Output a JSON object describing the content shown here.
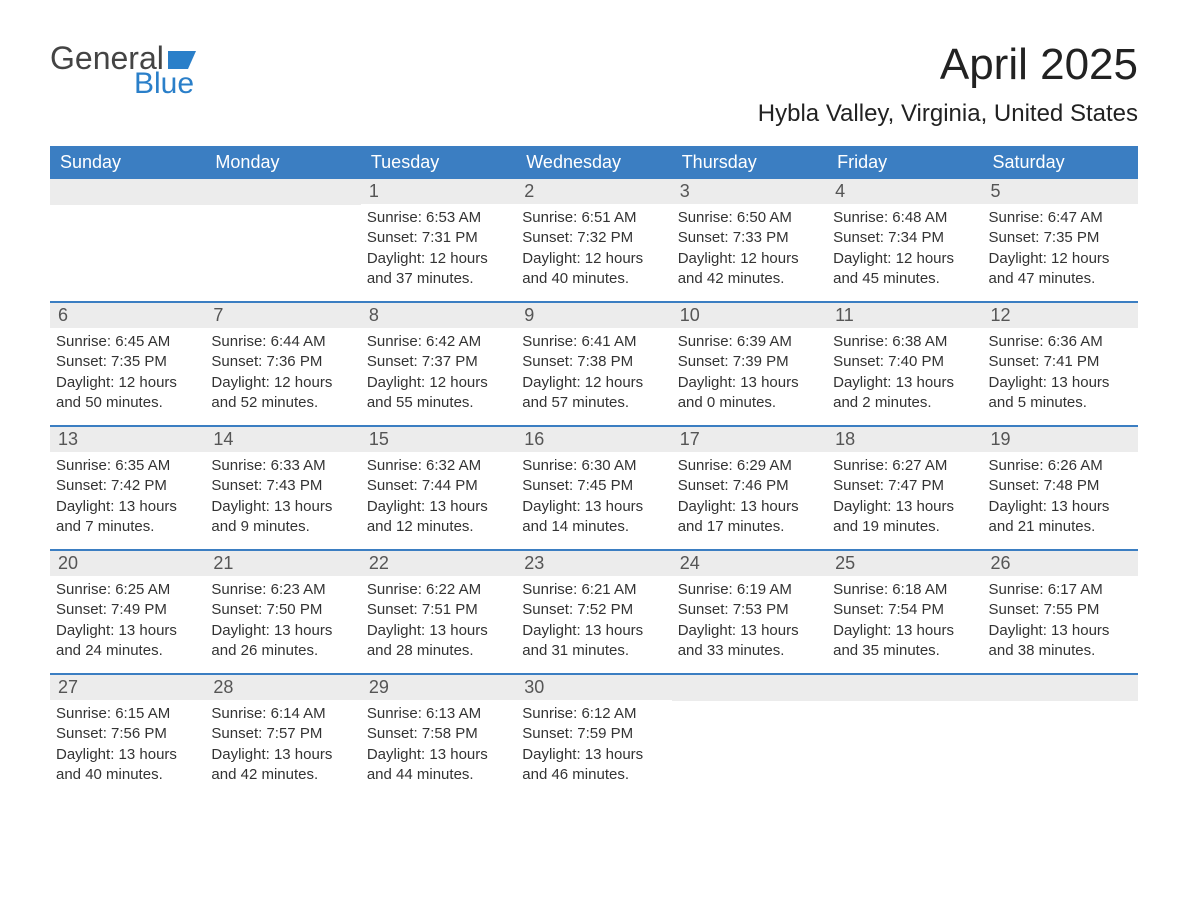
{
  "logo": {
    "text1": "General",
    "text2": "Blue",
    "accent": "#2a7fc9"
  },
  "title": "April 2025",
  "location": "Hybla Valley, Virginia, United States",
  "header_bg": "#3b7ec2",
  "daynum_bg": "#ececec",
  "dow": [
    "Sunday",
    "Monday",
    "Tuesday",
    "Wednesday",
    "Thursday",
    "Friday",
    "Saturday"
  ],
  "weeks": [
    [
      {
        "n": "",
        "sr": "",
        "ss": "",
        "dl": ""
      },
      {
        "n": "",
        "sr": "",
        "ss": "",
        "dl": ""
      },
      {
        "n": "1",
        "sr": "6:53 AM",
        "ss": "7:31 PM",
        "dl": "12 hours and 37 minutes."
      },
      {
        "n": "2",
        "sr": "6:51 AM",
        "ss": "7:32 PM",
        "dl": "12 hours and 40 minutes."
      },
      {
        "n": "3",
        "sr": "6:50 AM",
        "ss": "7:33 PM",
        "dl": "12 hours and 42 minutes."
      },
      {
        "n": "4",
        "sr": "6:48 AM",
        "ss": "7:34 PM",
        "dl": "12 hours and 45 minutes."
      },
      {
        "n": "5",
        "sr": "6:47 AM",
        "ss": "7:35 PM",
        "dl": "12 hours and 47 minutes."
      }
    ],
    [
      {
        "n": "6",
        "sr": "6:45 AM",
        "ss": "7:35 PM",
        "dl": "12 hours and 50 minutes."
      },
      {
        "n": "7",
        "sr": "6:44 AM",
        "ss": "7:36 PM",
        "dl": "12 hours and 52 minutes."
      },
      {
        "n": "8",
        "sr": "6:42 AM",
        "ss": "7:37 PM",
        "dl": "12 hours and 55 minutes."
      },
      {
        "n": "9",
        "sr": "6:41 AM",
        "ss": "7:38 PM",
        "dl": "12 hours and 57 minutes."
      },
      {
        "n": "10",
        "sr": "6:39 AM",
        "ss": "7:39 PM",
        "dl": "13 hours and 0 minutes."
      },
      {
        "n": "11",
        "sr": "6:38 AM",
        "ss": "7:40 PM",
        "dl": "13 hours and 2 minutes."
      },
      {
        "n": "12",
        "sr": "6:36 AM",
        "ss": "7:41 PM",
        "dl": "13 hours and 5 minutes."
      }
    ],
    [
      {
        "n": "13",
        "sr": "6:35 AM",
        "ss": "7:42 PM",
        "dl": "13 hours and 7 minutes."
      },
      {
        "n": "14",
        "sr": "6:33 AM",
        "ss": "7:43 PM",
        "dl": "13 hours and 9 minutes."
      },
      {
        "n": "15",
        "sr": "6:32 AM",
        "ss": "7:44 PM",
        "dl": "13 hours and 12 minutes."
      },
      {
        "n": "16",
        "sr": "6:30 AM",
        "ss": "7:45 PM",
        "dl": "13 hours and 14 minutes."
      },
      {
        "n": "17",
        "sr": "6:29 AM",
        "ss": "7:46 PM",
        "dl": "13 hours and 17 minutes."
      },
      {
        "n": "18",
        "sr": "6:27 AM",
        "ss": "7:47 PM",
        "dl": "13 hours and 19 minutes."
      },
      {
        "n": "19",
        "sr": "6:26 AM",
        "ss": "7:48 PM",
        "dl": "13 hours and 21 minutes."
      }
    ],
    [
      {
        "n": "20",
        "sr": "6:25 AM",
        "ss": "7:49 PM",
        "dl": "13 hours and 24 minutes."
      },
      {
        "n": "21",
        "sr": "6:23 AM",
        "ss": "7:50 PM",
        "dl": "13 hours and 26 minutes."
      },
      {
        "n": "22",
        "sr": "6:22 AM",
        "ss": "7:51 PM",
        "dl": "13 hours and 28 minutes."
      },
      {
        "n": "23",
        "sr": "6:21 AM",
        "ss": "7:52 PM",
        "dl": "13 hours and 31 minutes."
      },
      {
        "n": "24",
        "sr": "6:19 AM",
        "ss": "7:53 PM",
        "dl": "13 hours and 33 minutes."
      },
      {
        "n": "25",
        "sr": "6:18 AM",
        "ss": "7:54 PM",
        "dl": "13 hours and 35 minutes."
      },
      {
        "n": "26",
        "sr": "6:17 AM",
        "ss": "7:55 PM",
        "dl": "13 hours and 38 minutes."
      }
    ],
    [
      {
        "n": "27",
        "sr": "6:15 AM",
        "ss": "7:56 PM",
        "dl": "13 hours and 40 minutes."
      },
      {
        "n": "28",
        "sr": "6:14 AM",
        "ss": "7:57 PM",
        "dl": "13 hours and 42 minutes."
      },
      {
        "n": "29",
        "sr": "6:13 AM",
        "ss": "7:58 PM",
        "dl": "13 hours and 44 minutes."
      },
      {
        "n": "30",
        "sr": "6:12 AM",
        "ss": "7:59 PM",
        "dl": "13 hours and 46 minutes."
      },
      {
        "n": "",
        "sr": "",
        "ss": "",
        "dl": ""
      },
      {
        "n": "",
        "sr": "",
        "ss": "",
        "dl": ""
      },
      {
        "n": "",
        "sr": "",
        "ss": "",
        "dl": ""
      }
    ]
  ],
  "labels": {
    "sunrise": "Sunrise: ",
    "sunset": "Sunset: ",
    "daylight": "Daylight: "
  }
}
